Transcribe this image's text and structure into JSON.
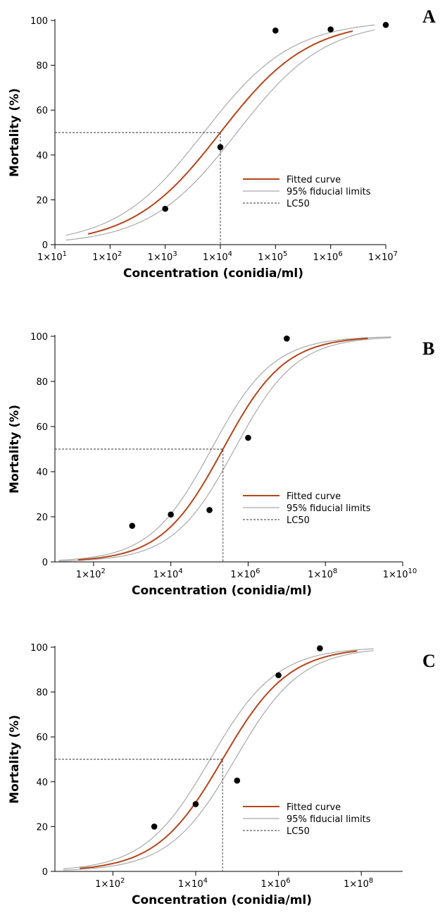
{
  "chart_data": [
    {
      "type": "line",
      "panel_label": "A",
      "xlabel": "Concentration (conidia/ml)",
      "ylabel": "Mortality (%)",
      "x_scale": "log10",
      "xlim_log10": [
        1,
        7
      ],
      "ylim": [
        0,
        100
      ],
      "x_ticks_log10": [
        1,
        2,
        3,
        4,
        5,
        6,
        7
      ],
      "x_tick_labels": [
        "1×10",
        "1×10",
        "1×10",
        "1×10",
        "1×10",
        "1×10",
        "1×10"
      ],
      "x_tick_exponents": [
        "1",
        "2",
        "3",
        "4",
        "5",
        "6",
        "7"
      ],
      "y_ticks": [
        0,
        20,
        40,
        60,
        80,
        100
      ],
      "y_tick_labels": [
        "0",
        "20",
        "40",
        "60",
        "80",
        "100"
      ],
      "points": [
        {
          "x_log10": 3,
          "y": 16
        },
        {
          "x_log10": 4,
          "y": 43.5
        },
        {
          "x_log10": 5,
          "y": 95.5
        },
        {
          "x_log10": 6,
          "y": 96
        },
        {
          "x_log10": 7,
          "y": 98
        }
      ],
      "lc50_x_log10": 4,
      "curve_x_range_log10": [
        1.6,
        6.4
      ],
      "ci_x_range_log10": [
        1.2,
        6.8
      ],
      "legend": [
        "Fitted curve",
        "95% fiducial limits",
        "LC50"
      ],
      "grid": false
    },
    {
      "type": "line",
      "panel_label": "B",
      "xlabel": "Concentration (conidia/ml)",
      "ylabel": "Mortality (%)",
      "x_scale": "log10",
      "xlim_log10": [
        1,
        10
      ],
      "ylim": [
        0,
        100
      ],
      "x_ticks_log10": [
        2,
        4,
        6,
        8,
        10
      ],
      "x_tick_labels": [
        "1×10",
        "1×10",
        "1×10",
        "1×10",
        "1×10"
      ],
      "x_tick_exponents": [
        "2",
        "4",
        "6",
        "8",
        "10"
      ],
      "y_ticks": [
        0,
        20,
        40,
        60,
        80,
        100
      ],
      "y_tick_labels": [
        "0",
        "20",
        "40",
        "60",
        "80",
        "100"
      ],
      "points": [
        {
          "x_log10": 3,
          "y": 16
        },
        {
          "x_log10": 4,
          "y": 21
        },
        {
          "x_log10": 5,
          "y": 23
        },
        {
          "x_log10": 6,
          "y": 55
        },
        {
          "x_log10": 7,
          "y": 99
        }
      ],
      "lc50_x_log10": 5.35,
      "curve_x_range_log10": [
        1.6,
        9.1
      ],
      "ci_x_range_log10": [
        1.1,
        9.7
      ],
      "legend": [
        "Fitted curve",
        "95% fiducial limits",
        "LC50"
      ],
      "grid": false
    },
    {
      "type": "line",
      "panel_label": "C",
      "xlabel": "Concentration (conidia/ml)",
      "ylabel": "Mortality (%)",
      "x_scale": "log10",
      "xlim_log10": [
        0.6,
        9
      ],
      "ylim": [
        0,
        100
      ],
      "x_ticks_log10": [
        2,
        4,
        6,
        8
      ],
      "x_tick_labels": [
        "1×10",
        "1×10",
        "1×10",
        "1×10"
      ],
      "x_tick_exponents": [
        "2",
        "4",
        "6",
        "8"
      ],
      "y_ticks": [
        0,
        20,
        40,
        60,
        80,
        100
      ],
      "y_tick_labels": [
        "0",
        "20",
        "40",
        "60",
        "80",
        "100"
      ],
      "points": [
        {
          "x_log10": 3,
          "y": 20
        },
        {
          "x_log10": 4,
          "y": 30
        },
        {
          "x_log10": 5,
          "y": 40.5
        },
        {
          "x_log10": 6,
          "y": 87.5
        },
        {
          "x_log10": 7,
          "y": 99.5
        }
      ],
      "lc50_x_log10": 4.65,
      "curve_x_range_log10": [
        1.2,
        7.9
      ],
      "ci_x_range_log10": [
        0.8,
        8.3
      ],
      "legend": [
        "Fitted curve",
        "95% fiducial limits",
        "LC50"
      ],
      "grid": false
    }
  ],
  "colors": {
    "fitted_curve": "#b5451b",
    "fiducial_limits": "#a9a9a9",
    "lc50": "#333333",
    "points": "#000000",
    "axis": "#000000"
  }
}
